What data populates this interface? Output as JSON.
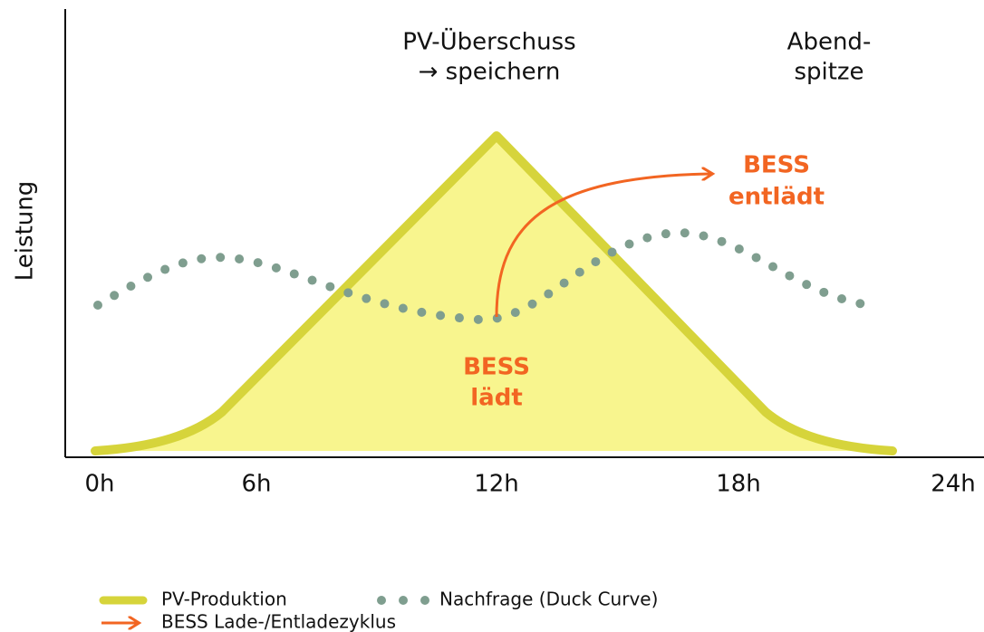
{
  "axis": {
    "y_label": "Leistung",
    "x_ticks": [
      "0h",
      "6h",
      "12h",
      "18h",
      "24h"
    ]
  },
  "annotations": {
    "surplus": [
      "PV-Überschuss",
      "→ speichern"
    ],
    "evening": [
      "Abend-",
      "spitze"
    ],
    "discharge": [
      "BESS",
      "entlädt"
    ],
    "charge": [
      "BESS",
      "lädt"
    ]
  },
  "legend": [
    "PV-Produktion",
    "Nachfrage (Duck Curve)",
    "BESS Lade-/Entladezyklus"
  ]
}
